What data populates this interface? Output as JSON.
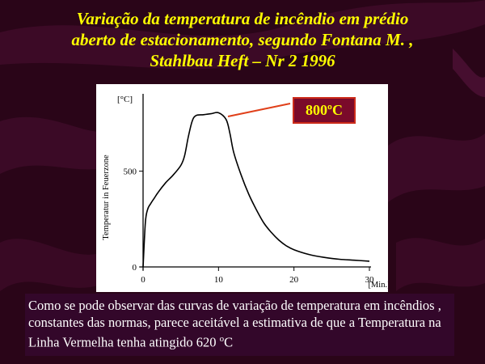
{
  "slide": {
    "title_line1": "Variação da temperatura de  incêndio  em  prédio",
    "title_line2": "aberto de estacionamento, segundo Fontana M. ,",
    "title_line3": "Stahlbau Heft – Nr 2 1996",
    "callout_label": "800ºC",
    "caption_text": "Como se pode observar  das curvas de variação de  temperatura  em incêndios , constantes das  normas,  parece aceitável  a estimativa de que a Temperatura na Linha Vermelha tenha atingido  620 ",
    "caption_unit_sup": "o",
    "caption_unit": "C"
  },
  "colors": {
    "background": "#2a0518",
    "title": "#ffff00",
    "callout_border": "#cc2b1a",
    "callout_fill": "#7a0a2a",
    "pointer_line": "#e0401a",
    "caption_bg": "#33072a",
    "curve": "#000000"
  },
  "chart_data": {
    "type": "line",
    "title": "",
    "xlabel": "[Min.]",
    "ylabel": "Temperatur in Feuerzone",
    "y_unit_label": "[°C]",
    "xlim": [
      0,
      30
    ],
    "ylim": [
      0,
      870
    ],
    "x_ticks": [
      0,
      10,
      20,
      30
    ],
    "x_tick_labels": [
      "0",
      "10",
      "20",
      "30"
    ],
    "y_ticks": [
      0,
      500
    ],
    "y_tick_labels": [
      "0",
      "500"
    ],
    "grid": false,
    "series": [
      {
        "x": [
          0,
          0.3,
          0.6,
          1.0,
          1.5,
          2.0,
          3.0,
          4.0,
          5.0,
          5.5,
          6.0,
          6.5,
          7.0,
          8.0,
          9.0,
          10.0,
          11.0,
          11.5,
          12.0,
          13.0,
          14.0,
          15.0,
          16.0,
          17.0,
          18.0,
          19.0,
          20.0,
          22.0,
          24.0,
          26.0,
          28.0,
          30.0
        ],
        "y": [
          0,
          230,
          300,
          330,
          360,
          390,
          440,
          480,
          530,
          580,
          680,
          760,
          790,
          795,
          800,
          805,
          770,
          700,
          600,
          480,
          380,
          300,
          230,
          180,
          140,
          110,
          90,
          65,
          50,
          40,
          35,
          30
        ]
      }
    ]
  }
}
